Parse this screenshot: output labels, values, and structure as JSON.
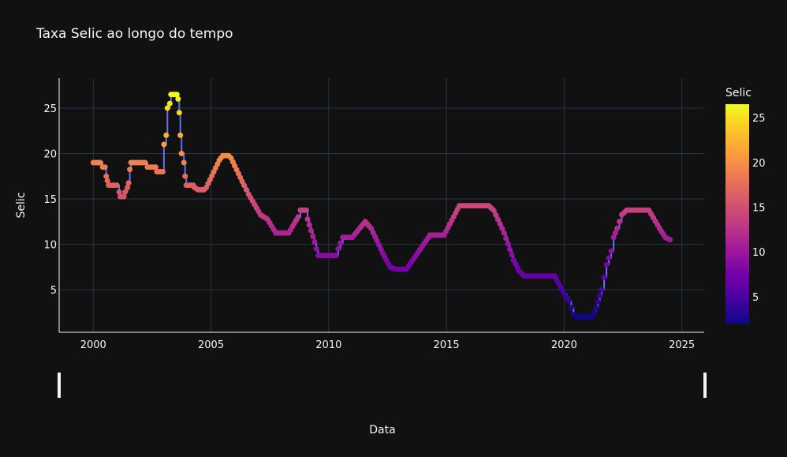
{
  "chart_data": {
    "type": "scatter",
    "title": "Taxa Selic ao longo do tempo",
    "xlabel": "Data",
    "ylabel": "Selic",
    "xlim": [
      1998.55,
      2025.95
    ],
    "ylim": [
      0.3,
      28.3
    ],
    "x_ticks": [
      2000,
      2005,
      2010,
      2015,
      2020,
      2025
    ],
    "y_ticks": [
      5,
      10,
      15,
      20,
      25
    ],
    "grid": true,
    "line_color": "#636efa",
    "colorbar": {
      "title": "Selic",
      "range": [
        2.0,
        26.5
      ],
      "ticks": [
        5,
        10,
        15,
        20,
        25
      ],
      "colorscale": "plasma"
    },
    "rangeslider": true,
    "anchors": [
      [
        2000.0,
        19.0
      ],
      [
        2000.3,
        19.0
      ],
      [
        2000.4,
        18.5
      ],
      [
        2000.5,
        18.5
      ],
      [
        2000.55,
        17.5
      ],
      [
        2000.6,
        17.0
      ],
      [
        2000.65,
        16.5
      ],
      [
        2001.0,
        16.5
      ],
      [
        2001.1,
        15.75
      ],
      [
        2001.15,
        15.25
      ],
      [
        2001.3,
        15.25
      ],
      [
        2001.35,
        15.75
      ],
      [
        2001.45,
        16.25
      ],
      [
        2001.5,
        16.75
      ],
      [
        2001.55,
        18.25
      ],
      [
        2001.6,
        19.0
      ],
      [
        2002.2,
        19.0
      ],
      [
        2002.3,
        18.5
      ],
      [
        2002.65,
        18.5
      ],
      [
        2002.7,
        18.0
      ],
      [
        2002.95,
        18.0
      ],
      [
        2003.0,
        21.0
      ],
      [
        2003.1,
        22.0
      ],
      [
        2003.15,
        25.0
      ],
      [
        2003.25,
        25.5
      ],
      [
        2003.3,
        26.5
      ],
      [
        2003.55,
        26.5
      ],
      [
        2003.6,
        26.0
      ],
      [
        2003.65,
        24.5
      ],
      [
        2003.7,
        22.0
      ],
      [
        2003.75,
        20.0
      ],
      [
        2003.85,
        19.0
      ],
      [
        2003.9,
        17.5
      ],
      [
        2003.95,
        16.5
      ],
      [
        2004.25,
        16.5
      ],
      [
        2004.3,
        16.25
      ],
      [
        2004.45,
        16.0
      ],
      [
        2004.7,
        16.0
      ],
      [
        2004.8,
        16.25
      ],
      [
        2005.35,
        19.25
      ],
      [
        2005.5,
        19.75
      ],
      [
        2005.75,
        19.75
      ],
      [
        2005.85,
        19.5
      ],
      [
        2006.4,
        16.5
      ],
      [
        2006.6,
        15.5
      ],
      [
        2007.1,
        13.25
      ],
      [
        2007.4,
        12.75
      ],
      [
        2007.75,
        11.25
      ],
      [
        2008.3,
        11.25
      ],
      [
        2008.7,
        13.0
      ],
      [
        2008.8,
        13.75
      ],
      [
        2009.05,
        13.75
      ],
      [
        2009.1,
        12.75
      ],
      [
        2009.4,
        10.25
      ],
      [
        2009.55,
        8.75
      ],
      [
        2010.3,
        8.75
      ],
      [
        2010.4,
        9.5
      ],
      [
        2010.6,
        10.75
      ],
      [
        2011.0,
        10.75
      ],
      [
        2011.55,
        12.5
      ],
      [
        2011.8,
        11.75
      ],
      [
        2012.3,
        9.0
      ],
      [
        2012.6,
        7.5
      ],
      [
        2012.85,
        7.25
      ],
      [
        2013.3,
        7.25
      ],
      [
        2014.3,
        11.0
      ],
      [
        2014.9,
        11.0
      ],
      [
        2015.55,
        14.25
      ],
      [
        2016.8,
        14.25
      ],
      [
        2017.0,
        13.75
      ],
      [
        2017.45,
        11.25
      ],
      [
        2017.85,
        8.25
      ],
      [
        2018.1,
        7.0
      ],
      [
        2018.3,
        6.5
      ],
      [
        2019.6,
        6.5
      ],
      [
        2019.75,
        5.75
      ],
      [
        2020.0,
        4.5
      ],
      [
        2020.2,
        3.75
      ],
      [
        2020.4,
        2.25
      ],
      [
        2020.6,
        2.0
      ],
      [
        2021.2,
        2.0
      ],
      [
        2021.35,
        3.0
      ],
      [
        2021.6,
        5.0
      ],
      [
        2021.8,
        7.75
      ],
      [
        2022.0,
        9.25
      ],
      [
        2022.1,
        10.75
      ],
      [
        2022.25,
        11.75
      ],
      [
        2022.45,
        13.25
      ],
      [
        2022.65,
        13.75
      ],
      [
        2023.6,
        13.75
      ],
      [
        2024.05,
        11.75
      ],
      [
        2024.3,
        10.75
      ],
      [
        2024.5,
        10.5
      ]
    ]
  }
}
